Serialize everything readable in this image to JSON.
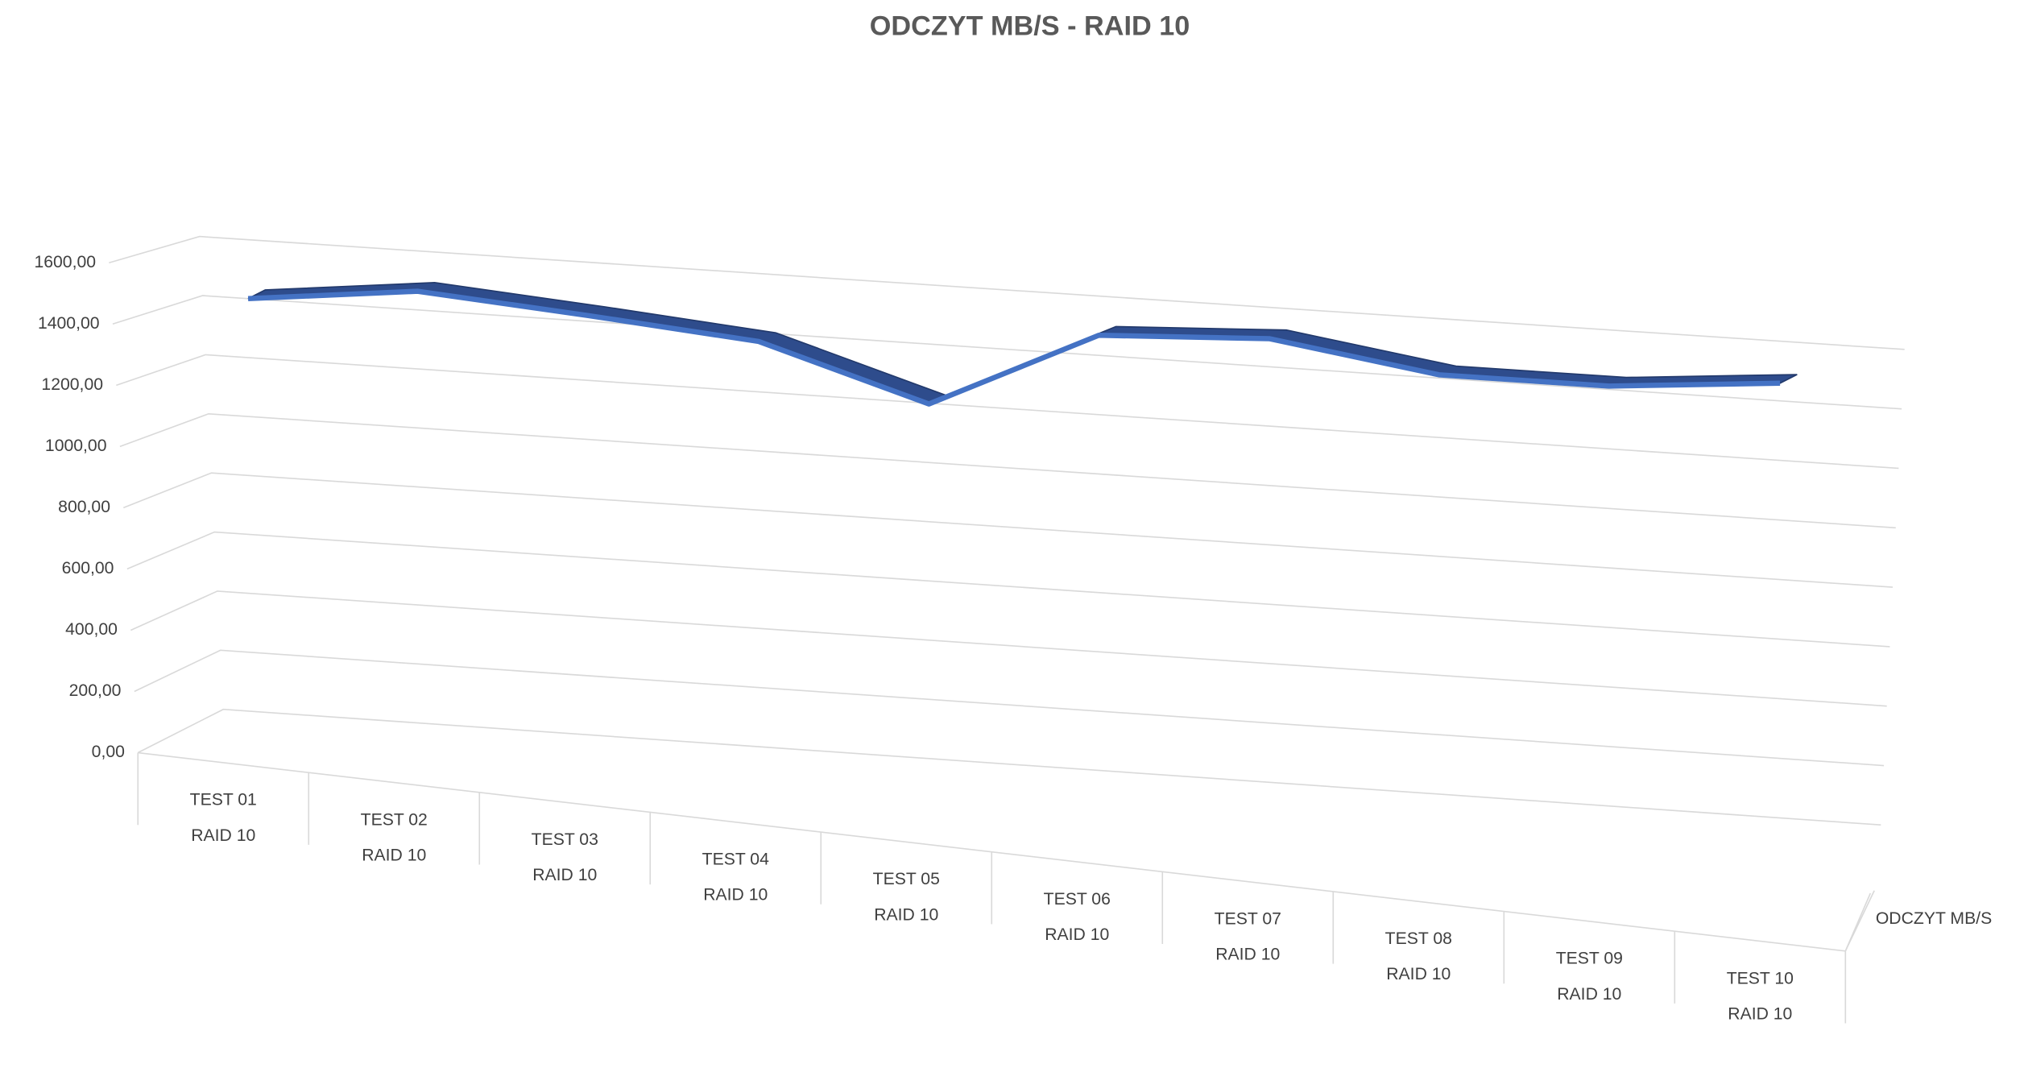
{
  "chart_data": {
    "type": "line3d",
    "title": "ODCZYT MB/S - RAID 10",
    "categories": [
      [
        "TEST 01",
        "RAID 10"
      ],
      [
        "TEST 02",
        "RAID 10"
      ],
      [
        "TEST 03",
        "RAID 10"
      ],
      [
        "TEST 04",
        "RAID 10"
      ],
      [
        "TEST 05",
        "RAID 10"
      ],
      [
        "TEST 06",
        "RAID 10"
      ],
      [
        "TEST 07",
        "RAID 10"
      ],
      [
        "TEST 08",
        "RAID 10"
      ],
      [
        "TEST 09",
        "RAID 10"
      ],
      [
        "TEST 10",
        "RAID 10"
      ]
    ],
    "series": [
      {
        "name": "ODCZYT MB/S",
        "color": "#4472c4",
        "values": [
          1475,
          1538,
          1494,
          1445,
          1272,
          1542,
          1569,
          1485,
          1485,
          1533
        ]
      }
    ],
    "ylim": [
      0,
      1600
    ],
    "yticks": [
      {
        "value": 0,
        "label": "0,00"
      },
      {
        "value": 200,
        "label": "200,00"
      },
      {
        "value": 400,
        "label": "400,00"
      },
      {
        "value": 600,
        "label": "600,00"
      },
      {
        "value": 800,
        "label": "800,00"
      },
      {
        "value": 1000,
        "label": "1000,00"
      },
      {
        "value": 1200,
        "label": "1200,00"
      },
      {
        "value": 1400,
        "label": "1400,00"
      },
      {
        "value": 1600,
        "label": "1600,00"
      }
    ],
    "grid": true
  }
}
